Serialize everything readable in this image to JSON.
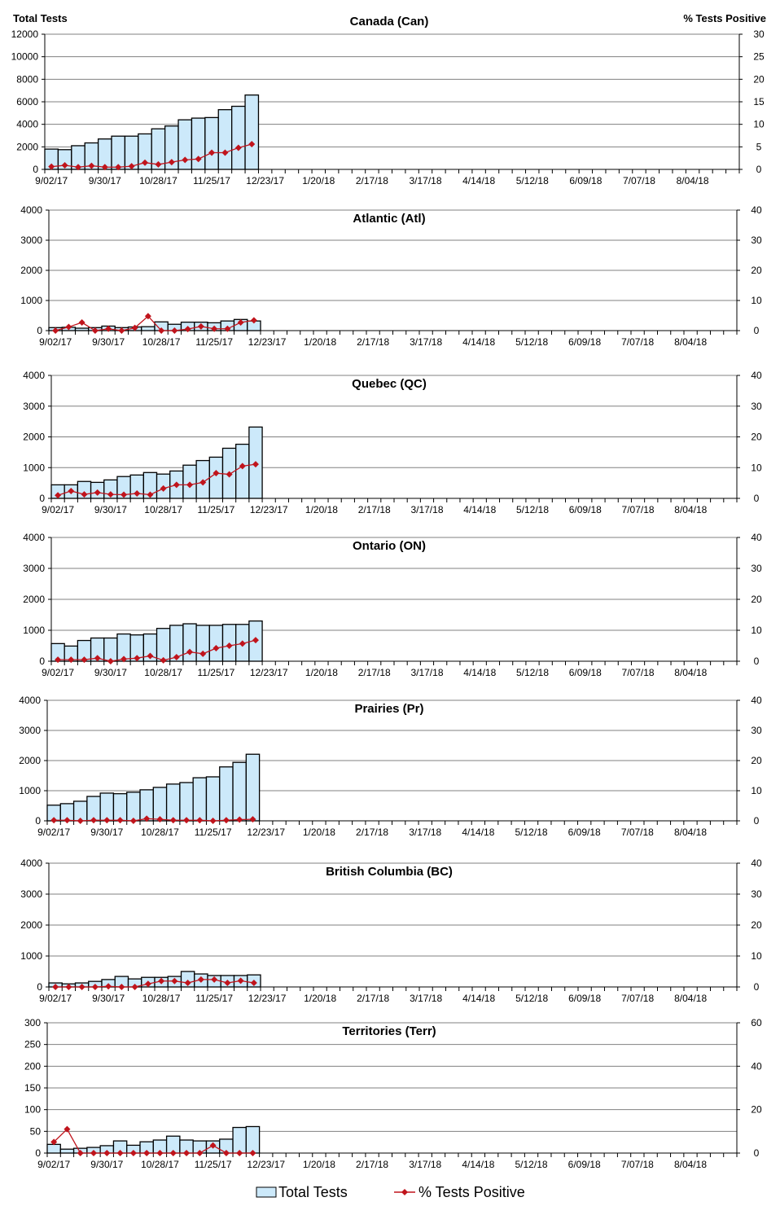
{
  "chart_data": {
    "type": "bar+line",
    "left_axis_label": "Total Tests",
    "right_axis_label": "% Tests Positive",
    "legend": {
      "placement": "bottom",
      "entries": [
        "Total Tests",
        "% Tests Positive"
      ]
    },
    "colors": {
      "bar_fill": "#cce9fa",
      "bar_stroke": "#000000",
      "line": "#c0141c",
      "grid": "#808080"
    },
    "grid": true,
    "x_tick_labels": [
      "9/02/17",
      "9/30/17",
      "10/28/17",
      "11/25/17",
      "12/23/17",
      "1/20/18",
      "2/17/18",
      "3/17/18",
      "4/14/18",
      "5/12/18",
      "6/09/18",
      "7/07/18",
      "8/04/18"
    ],
    "x_weeks_total": 52,
    "weeks": [
      "9/02/17",
      "9/09/17",
      "9/16/17",
      "9/23/17",
      "9/30/17",
      "10/07/17",
      "10/14/17",
      "10/21/17",
      "10/28/17",
      "11/04/17",
      "11/11/17",
      "11/18/17",
      "11/25/17",
      "12/02/17",
      "12/09/17",
      "12/16/17"
    ],
    "panels": [
      {
        "title": "Canada (Can)",
        "ylim": [
          0,
          12000
        ],
        "ystep": 2000,
        "y2lim": [
          0,
          30
        ],
        "y2step": 5,
        "total_tests": [
          1800,
          1750,
          2100,
          2350,
          2700,
          2950,
          2950,
          3150,
          3600,
          3850,
          4400,
          4550,
          4600,
          5300,
          5600,
          6600
        ],
        "pct_positive": [
          0.6,
          0.9,
          0.5,
          0.8,
          0.5,
          0.5,
          0.7,
          1.5,
          1.1,
          1.6,
          2.1,
          2.3,
          3.7,
          3.7,
          4.8,
          5.6
        ]
      },
      {
        "title": "Atlantic (Atl)",
        "ylim": [
          0,
          4000
        ],
        "ystep": 1000,
        "y2lim": [
          0,
          40
        ],
        "y2step": 10,
        "total_tests": [
          100,
          110,
          80,
          100,
          150,
          100,
          120,
          130,
          290,
          210,
          280,
          280,
          260,
          320,
          370,
          320
        ],
        "pct_positive": [
          0,
          1.2,
          2.7,
          0,
          0.6,
          0,
          0.9,
          4.8,
          0,
          0,
          0.5,
          1.4,
          0.6,
          0.6,
          2.7,
          3.4
        ]
      },
      {
        "title": "Quebec (QC)",
        "ylim": [
          0,
          4000
        ],
        "ystep": 1000,
        "y2lim": [
          0,
          40
        ],
        "y2step": 10,
        "total_tests": [
          440,
          440,
          550,
          520,
          600,
          710,
          760,
          840,
          790,
          890,
          1080,
          1230,
          1340,
          1630,
          1760,
          2320
        ],
        "pct_positive": [
          1.0,
          2.4,
          1.3,
          1.9,
          1.3,
          1.2,
          1.6,
          1.2,
          3.2,
          4.4,
          4.4,
          5.2,
          8.2,
          7.8,
          10.5,
          11.1
        ]
      },
      {
        "title": "Ontario (ON)",
        "ylim": [
          0,
          4000
        ],
        "ystep": 1000,
        "y2lim": [
          0,
          40
        ],
        "y2step": 10,
        "total_tests": [
          570,
          490,
          670,
          750,
          750,
          880,
          850,
          880,
          1060,
          1160,
          1210,
          1160,
          1160,
          1190,
          1190,
          1300
        ],
        "pct_positive": [
          0.5,
          0.5,
          0.5,
          1.0,
          0,
          0.7,
          1.0,
          1.7,
          0.3,
          1.3,
          3.0,
          2.4,
          4.2,
          5.0,
          5.7,
          6.8
        ]
      },
      {
        "title": "Prairies (Pr)",
        "ylim": [
          0,
          4000
        ],
        "ystep": 1000,
        "y2lim": [
          0,
          40
        ],
        "y2step": 10,
        "total_tests": [
          520,
          570,
          650,
          810,
          920,
          900,
          950,
          1030,
          1110,
          1220,
          1270,
          1430,
          1460,
          1790,
          1940,
          2210
        ],
        "pct_positive": [
          0.2,
          0.2,
          0,
          0.2,
          0.2,
          0.2,
          0,
          0.7,
          0.5,
          0.2,
          0.2,
          0.2,
          0,
          0.2,
          0.4,
          0.5
        ]
      },
      {
        "title": "British Columbia (BC)",
        "ylim": [
          0,
          4000
        ],
        "ystep": 1000,
        "y2lim": [
          0,
          40
        ],
        "y2step": 10,
        "total_tests": [
          130,
          100,
          130,
          180,
          240,
          340,
          260,
          310,
          310,
          340,
          500,
          420,
          370,
          370,
          370,
          390
        ],
        "pct_positive": [
          0,
          0,
          0,
          0,
          0.2,
          0,
          0,
          1.0,
          1.9,
          1.9,
          1.3,
          2.4,
          2.4,
          1.3,
          2.0,
          1.3
        ]
      },
      {
        "title": "Territories (Terr)",
        "ylim": [
          0,
          300
        ],
        "ystep": 50,
        "y2lim": [
          0,
          60
        ],
        "y2step": 20,
        "total_tests": [
          20,
          9,
          11,
          13,
          17,
          28,
          18,
          26,
          30,
          39,
          30,
          28,
          28,
          32,
          59,
          61
        ],
        "pct_positive": [
          5.1,
          11,
          0,
          0,
          0,
          0,
          0,
          0,
          0,
          0,
          0,
          0,
          3.5,
          0,
          0,
          0
        ]
      }
    ]
  }
}
